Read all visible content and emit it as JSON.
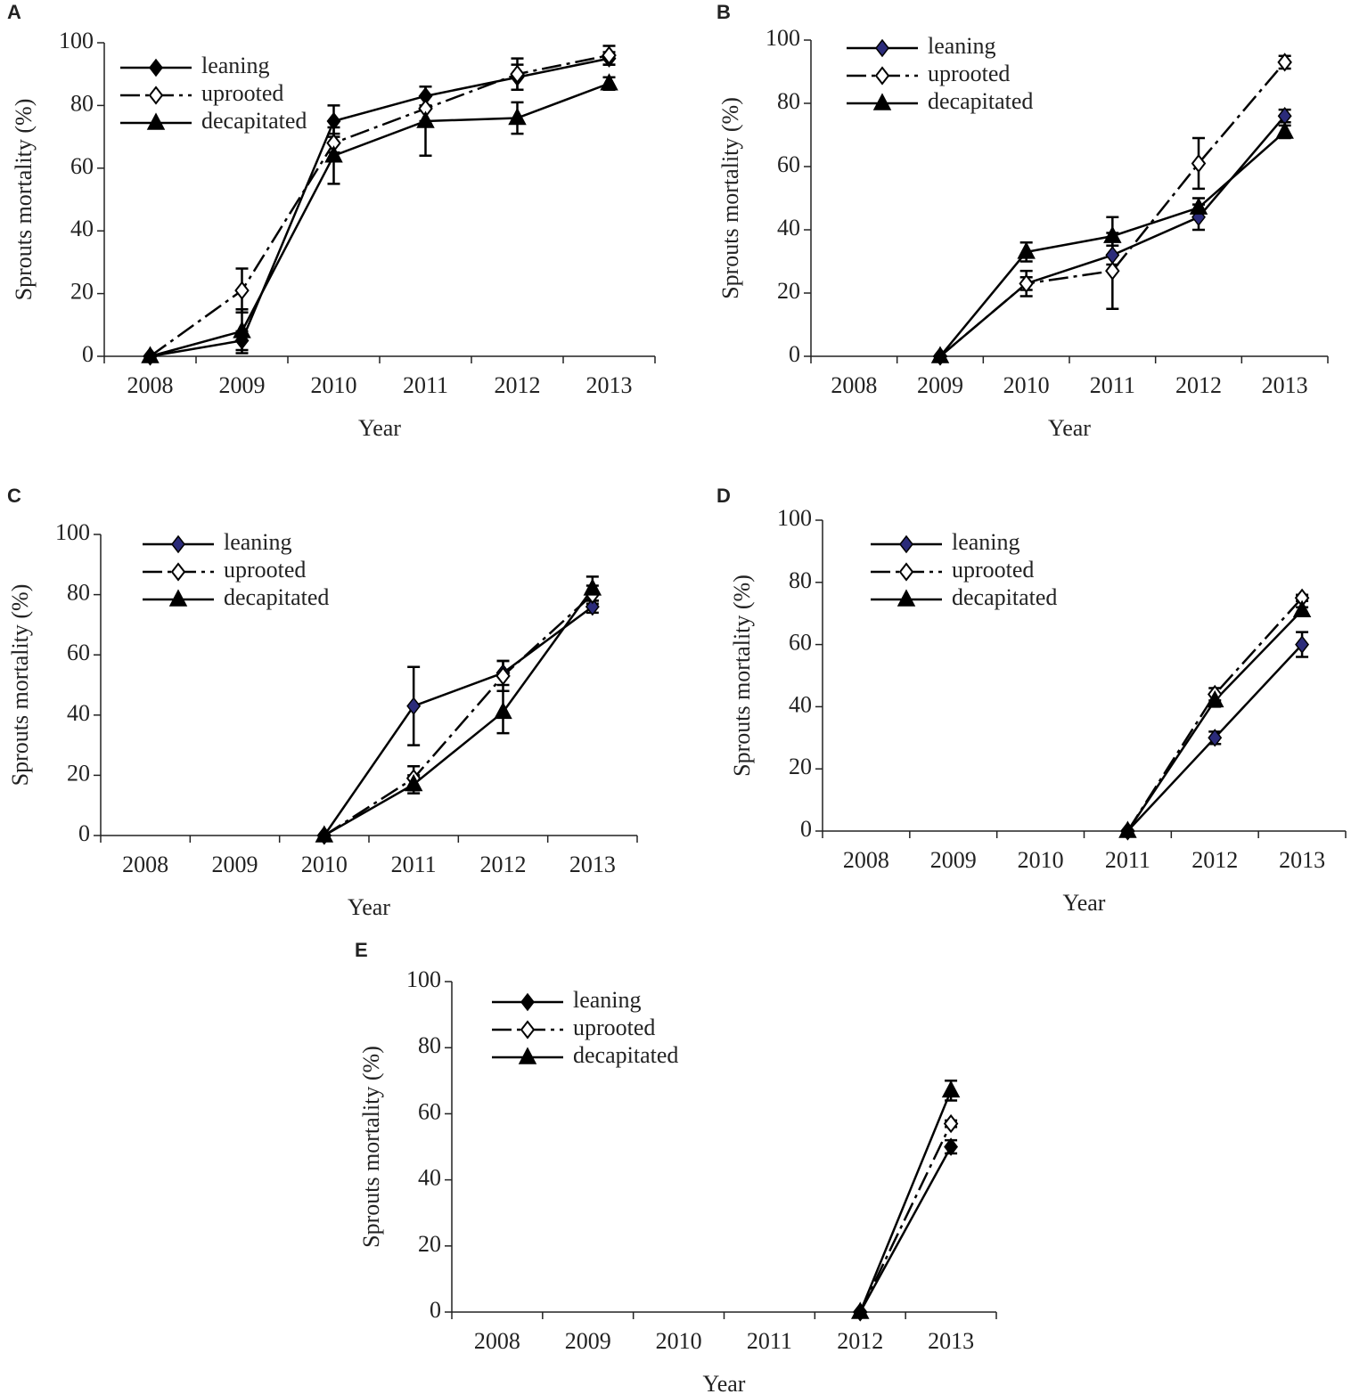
{
  "chart_data": [
    {
      "type": "line",
      "label": "A",
      "x_label": "Year",
      "y_label": "Sprouts mortality (%)",
      "categories": [
        "2008",
        "2009",
        "2010",
        "2011",
        "2012",
        "2013"
      ],
      "ylim": [
        0,
        100
      ],
      "yticks": [
        0,
        20,
        40,
        60,
        80,
        100
      ],
      "series": [
        {
          "name": "leaning",
          "color": "#000000",
          "marker": "diamond",
          "line": "solid",
          "values": [
            0,
            5,
            75,
            83,
            89,
            95
          ],
          "errors": [
            0,
            3,
            5,
            3,
            4,
            2
          ]
        },
        {
          "name": "uprooted",
          "color": "#000000",
          "marker": "open-diamond",
          "line": "dashdot",
          "values": [
            0,
            21,
            68,
            79,
            90,
            96
          ],
          "errors": [
            0,
            7,
            3,
            4,
            5,
            3
          ]
        },
        {
          "name": "decapitated",
          "color": "#000000",
          "marker": "triangle",
          "line": "solid",
          "values": [
            0,
            8,
            64,
            75,
            76,
            87
          ],
          "errors": [
            0,
            7,
            9,
            11,
            5,
            2
          ]
        }
      ]
    },
    {
      "type": "line",
      "label": "B",
      "x_label": "Year",
      "y_label": "Sprouts mortality (%)",
      "categories": [
        "2008",
        "2009",
        "2010",
        "2011",
        "2012",
        "2013"
      ],
      "ylim": [
        0,
        100
      ],
      "yticks": [
        0,
        20,
        40,
        60,
        80,
        100
      ],
      "series": [
        {
          "name": "leaning",
          "color": "#2b2b7a",
          "marker": "diamond",
          "line": "solid",
          "values": [
            null,
            0,
            23,
            32,
            44,
            76
          ],
          "errors": [
            null,
            0,
            2,
            3,
            4,
            2
          ]
        },
        {
          "name": "uprooted",
          "color": "#000000",
          "marker": "open-diamond",
          "line": "dashdot",
          "values": [
            null,
            0,
            23,
            27,
            61,
            93
          ],
          "errors": [
            null,
            0,
            4,
            12,
            8,
            2
          ]
        },
        {
          "name": "decapitated",
          "color": "#000000",
          "marker": "triangle",
          "line": "solid",
          "values": [
            null,
            0,
            33,
            38,
            47,
            71
          ],
          "errors": [
            null,
            0,
            3,
            6,
            3,
            2
          ]
        }
      ]
    },
    {
      "type": "line",
      "label": "C",
      "x_label": "Year",
      "y_label": "Sprouts mortality (%)",
      "categories": [
        "2008",
        "2009",
        "2010",
        "2011",
        "2012",
        "2013"
      ],
      "ylim": [
        0,
        100
      ],
      "yticks": [
        0,
        20,
        40,
        60,
        80,
        100
      ],
      "series": [
        {
          "name": "leaning",
          "color": "#2b2b7a",
          "marker": "diamond",
          "line": "solid",
          "values": [
            null,
            null,
            0,
            43,
            54,
            76
          ],
          "errors": [
            null,
            null,
            0,
            13,
            4,
            2
          ]
        },
        {
          "name": "uprooted",
          "color": "#000000",
          "marker": "open-diamond",
          "line": "dashdot",
          "values": [
            null,
            null,
            0,
            19,
            53,
            80
          ],
          "errors": [
            null,
            null,
            0,
            4,
            5,
            3
          ]
        },
        {
          "name": "decapitated",
          "color": "#000000",
          "marker": "triangle",
          "line": "solid",
          "values": [
            null,
            null,
            0,
            17,
            41,
            82
          ],
          "errors": [
            null,
            null,
            0,
            3,
            7,
            4
          ]
        }
      ]
    },
    {
      "type": "line",
      "label": "D",
      "x_label": "Year",
      "y_label": "Sprouts mortality (%)",
      "categories": [
        "2008",
        "2009",
        "2010",
        "2011",
        "2012",
        "2013"
      ],
      "ylim": [
        0,
        100
      ],
      "yticks": [
        0,
        20,
        40,
        60,
        80,
        100
      ],
      "series": [
        {
          "name": "leaning",
          "color": "#2b2b7a",
          "marker": "diamond",
          "line": "solid",
          "values": [
            null,
            null,
            null,
            0,
            30,
            60
          ],
          "errors": [
            null,
            null,
            null,
            0,
            2,
            4
          ]
        },
        {
          "name": "uprooted",
          "color": "#000000",
          "marker": "open-diamond",
          "line": "dashdot",
          "values": [
            null,
            null,
            null,
            0,
            44,
            75
          ],
          "errors": [
            null,
            null,
            null,
            0,
            2,
            1
          ]
        },
        {
          "name": "decapitated",
          "color": "#000000",
          "marker": "triangle",
          "line": "solid",
          "values": [
            null,
            null,
            null,
            0,
            42,
            71
          ],
          "errors": [
            null,
            null,
            null,
            0,
            2,
            1
          ]
        }
      ]
    },
    {
      "type": "line",
      "label": "E",
      "x_label": "Year",
      "y_label": "Sprouts mortality (%)",
      "categories": [
        "2008",
        "2009",
        "2010",
        "2011",
        "2012",
        "2013"
      ],
      "ylim": [
        0,
        100
      ],
      "yticks": [
        0,
        20,
        40,
        60,
        80,
        100
      ],
      "series": [
        {
          "name": "leaning",
          "color": "#000000",
          "marker": "diamond",
          "line": "solid",
          "values": [
            null,
            null,
            null,
            null,
            0,
            50
          ],
          "errors": [
            null,
            null,
            null,
            null,
            0,
            2
          ]
        },
        {
          "name": "uprooted",
          "color": "#000000",
          "marker": "open-diamond",
          "line": "dashdot",
          "values": [
            null,
            null,
            null,
            null,
            0,
            57
          ],
          "errors": [
            null,
            null,
            null,
            null,
            0,
            1
          ]
        },
        {
          "name": "decapitated",
          "color": "#000000",
          "marker": "triangle",
          "line": "solid",
          "values": [
            null,
            null,
            null,
            null,
            0,
            67
          ],
          "errors": [
            null,
            null,
            null,
            null,
            0,
            3
          ]
        }
      ]
    }
  ]
}
